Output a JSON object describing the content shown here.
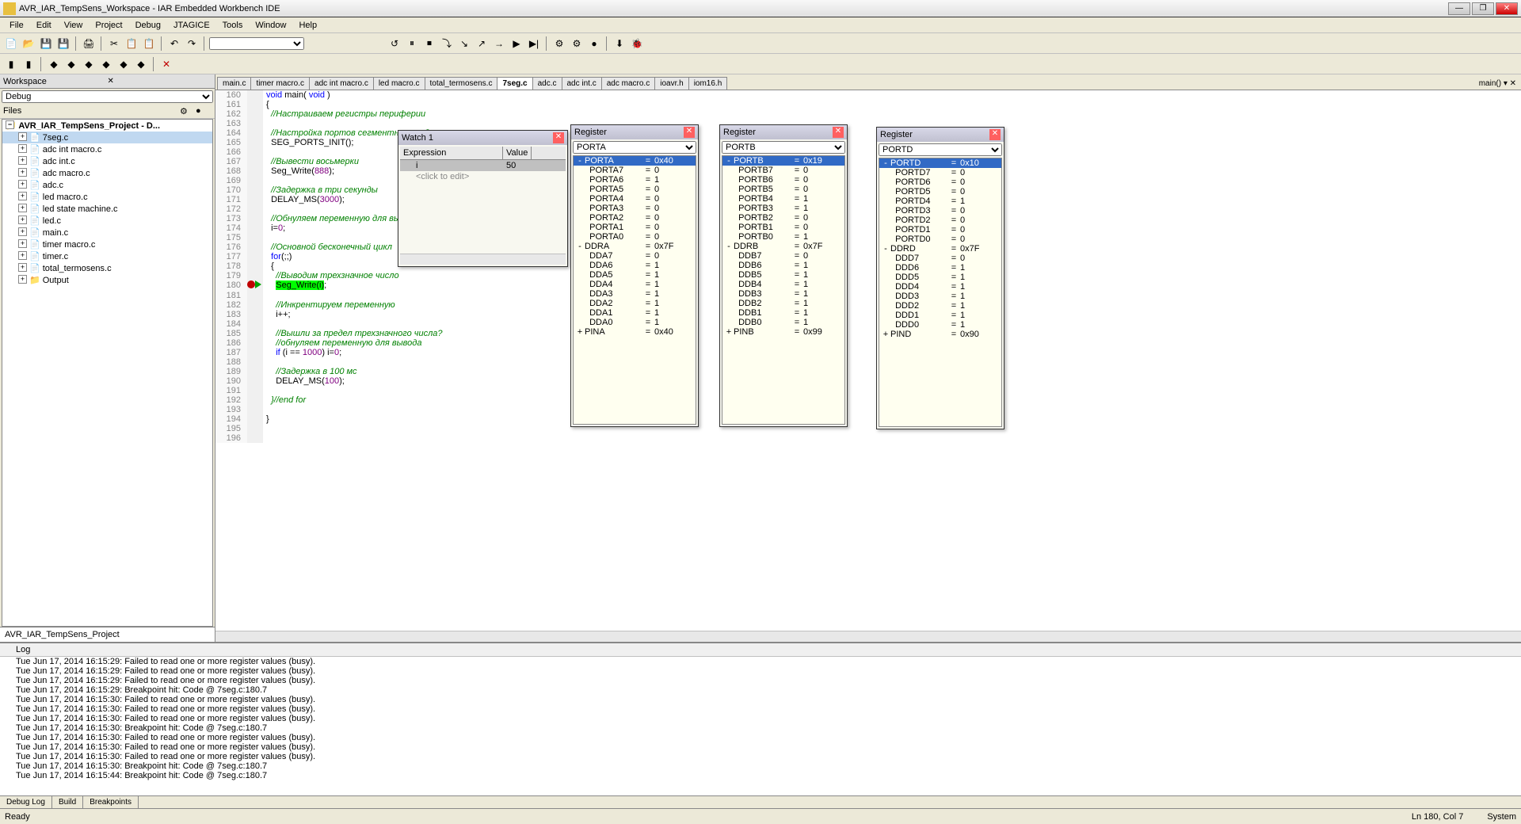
{
  "title": "AVR_IAR_TempSens_Workspace - IAR Embedded Workbench IDE",
  "menus": [
    "File",
    "Edit",
    "View",
    "Project",
    "Debug",
    "JTAGICE",
    "Tools",
    "Window",
    "Help"
  ],
  "workspace": {
    "title": "Workspace",
    "config": "Debug",
    "col_files": "Files",
    "root": "AVR_IAR_TempSens_Project - D...",
    "items": [
      "7seg.c",
      "adc int macro.c",
      "adc int.c",
      "adc macro.c",
      "adc.c",
      "led macro.c",
      "led state machine.c",
      "led.c",
      "main.c",
      "timer macro.c",
      "timer.c",
      "total_termosens.c",
      "Output"
    ],
    "selected": "7seg.c",
    "tab": "AVR_IAR_TempSens_Project"
  },
  "editor": {
    "tabs": [
      "main.c",
      "timer macro.c",
      "adc int macro.c",
      "led macro.c",
      "total_termosens.c",
      "7seg.c",
      "adc.c",
      "adc int.c",
      "adc macro.c",
      "ioavr.h",
      "iom16.h"
    ],
    "active": "7seg.c",
    "right_label": "main()",
    "lines": [
      {
        "n": 160,
        "t": "void main( void )",
        "cls": ""
      },
      {
        "n": 161,
        "t": "{",
        "cls": ""
      },
      {
        "n": 162,
        "t": "  //Настраиваем регистры периферии",
        "cls": "cm"
      },
      {
        "n": 163,
        "t": "",
        "cls": ""
      },
      {
        "n": 164,
        "t": "  //Настройка портов сегментного индикатора",
        "cls": "cm"
      },
      {
        "n": 165,
        "t": "  SEG_PORTS_INIT();",
        "cls": ""
      },
      {
        "n": 166,
        "t": "",
        "cls": ""
      },
      {
        "n": 167,
        "t": "  //Вывести восьмерки",
        "cls": "cm"
      },
      {
        "n": 168,
        "t": "  Seg_Write(888);",
        "cls": ""
      },
      {
        "n": 169,
        "t": "",
        "cls": ""
      },
      {
        "n": 170,
        "t": "  //Задержка в три секунды",
        "cls": "cm"
      },
      {
        "n": 171,
        "t": "  DELAY_MS(3000);",
        "cls": ""
      },
      {
        "n": 172,
        "t": "",
        "cls": ""
      },
      {
        "n": 173,
        "t": "  //Обнуляем переменную для выв",
        "cls": "cm"
      },
      {
        "n": 174,
        "t": "  i=0;",
        "cls": ""
      },
      {
        "n": 175,
        "t": "",
        "cls": ""
      },
      {
        "n": 176,
        "t": "  //Основной бесконечный цикл",
        "cls": "cm"
      },
      {
        "n": 177,
        "t": "  for(;;)",
        "cls": ""
      },
      {
        "n": 178,
        "t": "  {",
        "cls": ""
      },
      {
        "n": 179,
        "t": "    //Выводим трехзначное число",
        "cls": "cm"
      },
      {
        "n": 180,
        "t": "    Seg_Write(i);",
        "cls": "",
        "bp": true,
        "cur": true
      },
      {
        "n": 181,
        "t": "",
        "cls": ""
      },
      {
        "n": 182,
        "t": "    //Инкрентируем переменную",
        "cls": "cm"
      },
      {
        "n": 183,
        "t": "    i++;",
        "cls": ""
      },
      {
        "n": 184,
        "t": "",
        "cls": ""
      },
      {
        "n": 185,
        "t": "    //Вышли за предел трехзначного числа?",
        "cls": "cm"
      },
      {
        "n": 186,
        "t": "    //обнуляем переменную для вывода",
        "cls": "cm"
      },
      {
        "n": 187,
        "t": "    if (i == 1000) i=0;",
        "cls": ""
      },
      {
        "n": 188,
        "t": "",
        "cls": ""
      },
      {
        "n": 189,
        "t": "    //Задержка в 100 мс",
        "cls": "cm"
      },
      {
        "n": 190,
        "t": "    DELAY_MS(100);",
        "cls": ""
      },
      {
        "n": 191,
        "t": "",
        "cls": ""
      },
      {
        "n": 192,
        "t": "  }//end for",
        "cls": "cm"
      },
      {
        "n": 193,
        "t": "",
        "cls": ""
      },
      {
        "n": 194,
        "t": "}",
        "cls": ""
      },
      {
        "n": 195,
        "t": "",
        "cls": ""
      },
      {
        "n": 196,
        "t": "",
        "cls": ""
      }
    ]
  },
  "watch": {
    "title": "Watch 1",
    "col_expr": "Expression",
    "col_val": "Value",
    "rows": [
      {
        "e": "i",
        "v": "50"
      }
    ],
    "edit_hint": "<click to edit>"
  },
  "reg_a": {
    "title": "Register",
    "sel": "PORTA",
    "rows": [
      {
        "n": "PORTA",
        "v": "0x40",
        "hl": true,
        "ex": "-"
      },
      {
        "n": "PORTA7",
        "v": "0",
        "ind": 1
      },
      {
        "n": "PORTA6",
        "v": "1",
        "ind": 1
      },
      {
        "n": "PORTA5",
        "v": "0",
        "ind": 1
      },
      {
        "n": "PORTA4",
        "v": "0",
        "ind": 1
      },
      {
        "n": "PORTA3",
        "v": "0",
        "ind": 1
      },
      {
        "n": "PORTA2",
        "v": "0",
        "ind": 1
      },
      {
        "n": "PORTA1",
        "v": "0",
        "ind": 1
      },
      {
        "n": "PORTA0",
        "v": "0",
        "ind": 1
      },
      {
        "n": "DDRA",
        "v": "0x7F",
        "ex": "-"
      },
      {
        "n": "DDA7",
        "v": "0",
        "ind": 1
      },
      {
        "n": "DDA6",
        "v": "1",
        "ind": 1
      },
      {
        "n": "DDA5",
        "v": "1",
        "ind": 1
      },
      {
        "n": "DDA4",
        "v": "1",
        "ind": 1
      },
      {
        "n": "DDA3",
        "v": "1",
        "ind": 1
      },
      {
        "n": "DDA2",
        "v": "1",
        "ind": 1
      },
      {
        "n": "DDA1",
        "v": "1",
        "ind": 1
      },
      {
        "n": "DDA0",
        "v": "1",
        "ind": 1
      },
      {
        "n": "PINA",
        "v": "0x40",
        "ex": "+"
      }
    ]
  },
  "reg_b": {
    "title": "Register",
    "sel": "PORTB",
    "rows": [
      {
        "n": "PORTB",
        "v": "0x19",
        "hl": true,
        "ex": "-"
      },
      {
        "n": "PORTB7",
        "v": "0",
        "ind": 1
      },
      {
        "n": "PORTB6",
        "v": "0",
        "ind": 1
      },
      {
        "n": "PORTB5",
        "v": "0",
        "ind": 1
      },
      {
        "n": "PORTB4",
        "v": "1",
        "ind": 1
      },
      {
        "n": "PORTB3",
        "v": "1",
        "ind": 1
      },
      {
        "n": "PORTB2",
        "v": "0",
        "ind": 1
      },
      {
        "n": "PORTB1",
        "v": "0",
        "ind": 1
      },
      {
        "n": "PORTB0",
        "v": "1",
        "ind": 1
      },
      {
        "n": "DDRB",
        "v": "0x7F",
        "ex": "-"
      },
      {
        "n": "DDB7",
        "v": "0",
        "ind": 1
      },
      {
        "n": "DDB6",
        "v": "1",
        "ind": 1
      },
      {
        "n": "DDB5",
        "v": "1",
        "ind": 1
      },
      {
        "n": "DDB4",
        "v": "1",
        "ind": 1
      },
      {
        "n": "DDB3",
        "v": "1",
        "ind": 1
      },
      {
        "n": "DDB2",
        "v": "1",
        "ind": 1
      },
      {
        "n": "DDB1",
        "v": "1",
        "ind": 1
      },
      {
        "n": "DDB0",
        "v": "1",
        "ind": 1
      },
      {
        "n": "PINB",
        "v": "0x99",
        "ex": "+"
      }
    ]
  },
  "reg_d": {
    "title": "Register",
    "sel": "PORTD",
    "rows": [
      {
        "n": "PORTD",
        "v": "0x10",
        "hl": true,
        "ex": "-"
      },
      {
        "n": "PORTD7",
        "v": "0",
        "ind": 1
      },
      {
        "n": "PORTD6",
        "v": "0",
        "ind": 1
      },
      {
        "n": "PORTD5",
        "v": "0",
        "ind": 1
      },
      {
        "n": "PORTD4",
        "v": "1",
        "ind": 1
      },
      {
        "n": "PORTD3",
        "v": "0",
        "ind": 1
      },
      {
        "n": "PORTD2",
        "v": "0",
        "ind": 1
      },
      {
        "n": "PORTD1",
        "v": "0",
        "ind": 1
      },
      {
        "n": "PORTD0",
        "v": "0",
        "ind": 1
      },
      {
        "n": "DDRD",
        "v": "0x7F",
        "ex": "-"
      },
      {
        "n": "DDD7",
        "v": "0",
        "ind": 1
      },
      {
        "n": "DDD6",
        "v": "1",
        "ind": 1
      },
      {
        "n": "DDD5",
        "v": "1",
        "ind": 1
      },
      {
        "n": "DDD4",
        "v": "1",
        "ind": 1
      },
      {
        "n": "DDD3",
        "v": "1",
        "ind": 1
      },
      {
        "n": "DDD2",
        "v": "1",
        "ind": 1
      },
      {
        "n": "DDD1",
        "v": "1",
        "ind": 1
      },
      {
        "n": "DDD0",
        "v": "1",
        "ind": 1
      },
      {
        "n": "PIND",
        "v": "0x90",
        "ex": "+"
      }
    ]
  },
  "log": {
    "head": "Log",
    "lines": [
      "Tue Jun 17, 2014 16:15:29: Failed to read one or more register values (busy).",
      "Tue Jun 17, 2014 16:15:29: Failed to read one or more register values (busy).",
      "Tue Jun 17, 2014 16:15:29: Failed to read one or more register values (busy).",
      "Tue Jun 17, 2014 16:15:29: Breakpoint hit: Code @ 7seg.c:180.7",
      "Tue Jun 17, 2014 16:15:30: Failed to read one or more register values (busy).",
      "Tue Jun 17, 2014 16:15:30: Failed to read one or more register values (busy).",
      "Tue Jun 17, 2014 16:15:30: Failed to read one or more register values (busy).",
      "Tue Jun 17, 2014 16:15:30: Breakpoint hit: Code @ 7seg.c:180.7",
      "Tue Jun 17, 2014 16:15:30: Failed to read one or more register values (busy).",
      "Tue Jun 17, 2014 16:15:30: Failed to read one or more register values (busy).",
      "Tue Jun 17, 2014 16:15:30: Failed to read one or more register values (busy).",
      "Tue Jun 17, 2014 16:15:30: Breakpoint hit: Code @ 7seg.c:180.7",
      "Tue Jun 17, 2014 16:15:44: Breakpoint hit: Code @ 7seg.c:180.7"
    ],
    "tabs": [
      "Debug Log",
      "Build",
      "Breakpoints"
    ]
  },
  "status": {
    "left": "Ready",
    "pos": "Ln 180, Col 7",
    "sys": "System"
  }
}
